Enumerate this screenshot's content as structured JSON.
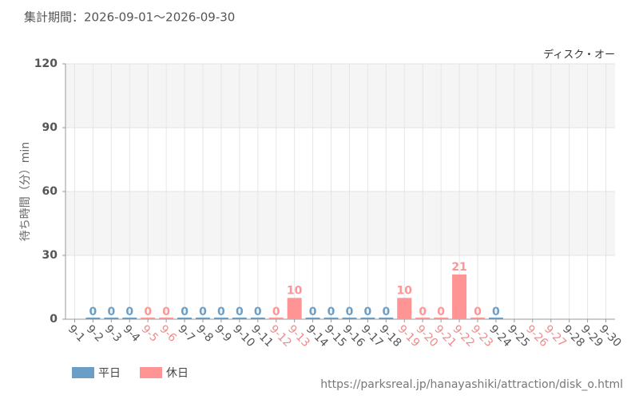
{
  "chart_data": {
    "type": "bar",
    "title": "集計期間：2026-09-01～2026-09-30",
    "subtitle": "ディスク・オー",
    "y_label": "待ち時間（分）min",
    "source": "https://parksreal.jp/hanayashiki/attraction/disk_o.html",
    "categories": [
      "9-1",
      "9-2",
      "9-3",
      "9-4",
      "9-5",
      "9-6",
      "9-7",
      "9-8",
      "9-9",
      "9-10",
      "9-11",
      "9-12",
      "9-13",
      "9-14",
      "9-15",
      "9-16",
      "9-17",
      "9-18",
      "9-19",
      "9-20",
      "9-21",
      "9-22",
      "9-23",
      "9-24",
      "9-25",
      "9-26",
      "9-27",
      "9-28",
      "9-29",
      "9-30"
    ],
    "category_colors": [
      "#555555",
      "#555555",
      "#555555",
      "#555555",
      "#f08a8a",
      "#f08a8a",
      "#555555",
      "#555555",
      "#555555",
      "#555555",
      "#555555",
      "#f08a8a",
      "#f08a8a",
      "#555555",
      "#555555",
      "#555555",
      "#555555",
      "#555555",
      "#f08a8a",
      "#f08a8a",
      "#f08a8a",
      "#f08a8a",
      "#f08a8a",
      "#555555",
      "#555555",
      "#f08a8a",
      "#f08a8a",
      "#555555",
      "#555555",
      "#555555"
    ],
    "series": [
      {
        "name": "平日",
        "color": "#6a9ec7",
        "values": [
          null,
          0,
          0,
          0,
          null,
          null,
          0,
          0,
          0,
          0,
          0,
          null,
          null,
          0,
          0,
          0,
          0,
          0,
          null,
          null,
          null,
          null,
          null,
          0,
          null,
          null,
          null,
          null,
          null,
          null
        ]
      },
      {
        "name": "休日",
        "color": "#ff9494",
        "values": [
          null,
          null,
          null,
          null,
          0,
          0,
          null,
          null,
          null,
          null,
          null,
          0,
          10,
          null,
          null,
          null,
          null,
          null,
          10,
          0,
          0,
          21,
          0,
          null,
          null,
          null,
          null,
          null,
          null,
          null
        ]
      }
    ],
    "ylim": [
      0,
      120
    ],
    "yticks": [
      0,
      30,
      60,
      90,
      120
    ],
    "grid": true,
    "legend": "bottom-left"
  }
}
